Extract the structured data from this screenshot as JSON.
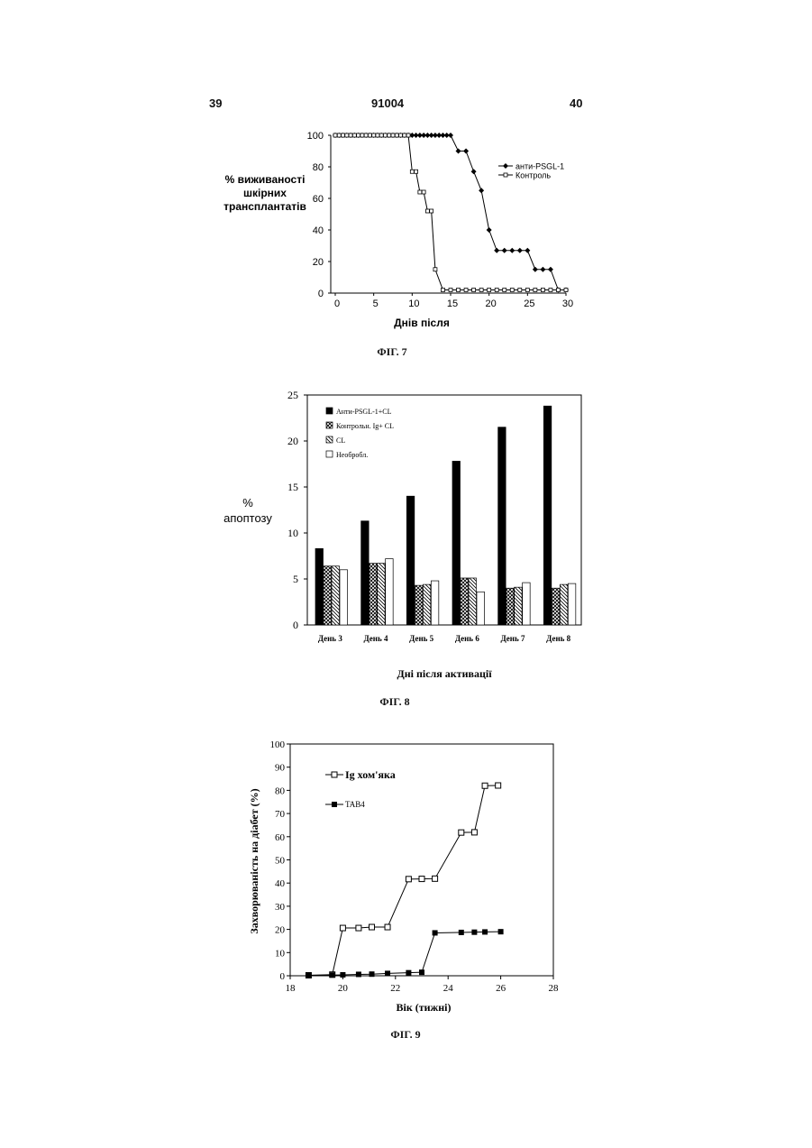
{
  "header": {
    "left_page": "39",
    "doc_number": "91004",
    "right_page": "40"
  },
  "figures": [
    {
      "caption": "ФІГ. 7"
    },
    {
      "caption": "ФІГ. 8"
    },
    {
      "caption": "ФІГ. 9"
    }
  ],
  "chart_data": [
    {
      "type": "line",
      "ylabel": [
        "% виживаності",
        "шкірних",
        "трансплантатів"
      ],
      "xlabel": "Днів після",
      "xlim": [
        0,
        30
      ],
      "ylim": [
        0,
        100
      ],
      "xticks": [
        0,
        5,
        10,
        15,
        20,
        25,
        30
      ],
      "yticks": [
        0,
        20,
        40,
        60,
        80,
        100
      ],
      "legend_position": "right",
      "series": [
        {
          "name": "анти-PSGL-1",
          "marker": "filled-diamond",
          "x": [
            0,
            0.5,
            1,
            1.5,
            2,
            2.5,
            3,
            3.5,
            4,
            4.5,
            5,
            5.5,
            6,
            6.5,
            7,
            7.5,
            8,
            8.5,
            9,
            9.5,
            10,
            10.5,
            11,
            11.5,
            12,
            12.5,
            13,
            13.5,
            14,
            14.5,
            15,
            16,
            17,
            18,
            19,
            20,
            21,
            22,
            23,
            24,
            25,
            26,
            27,
            28,
            29,
            30
          ],
          "y": [
            100,
            100,
            100,
            100,
            100,
            100,
            100,
            100,
            100,
            100,
            100,
            100,
            100,
            100,
            100,
            100,
            100,
            100,
            100,
            100,
            100,
            100,
            100,
            100,
            100,
            100,
            100,
            100,
            100,
            100,
            100,
            90,
            90,
            77,
            65,
            40,
            27,
            27,
            27,
            27,
            27,
            15,
            15,
            15,
            2,
            2
          ]
        },
        {
          "name": "Контроль",
          "marker": "open-square",
          "x": [
            0,
            0.5,
            1,
            1.5,
            2,
            2.5,
            3,
            3.5,
            4,
            4.5,
            5,
            5.5,
            6,
            6.5,
            7,
            7.5,
            8,
            8.5,
            9,
            9.5,
            10,
            10.5,
            11,
            11.5,
            12,
            12.5,
            13,
            14,
            15,
            16,
            17,
            18,
            19,
            20,
            21,
            22,
            23,
            24,
            25,
            26,
            27,
            28,
            29,
            30
          ],
          "y": [
            100,
            100,
            100,
            100,
            100,
            100,
            100,
            100,
            100,
            100,
            100,
            100,
            100,
            100,
            100,
            100,
            100,
            100,
            100,
            100,
            77,
            77,
            64,
            64,
            52,
            52,
            15,
            2,
            2,
            2,
            2,
            2,
            2,
            2,
            2,
            2,
            2,
            2,
            2,
            2,
            2,
            2,
            2,
            2
          ]
        }
      ]
    },
    {
      "type": "bar",
      "ylabel": [
        "%",
        "апоптозу"
      ],
      "xlabel": "Дні після активації",
      "ylim": [
        0,
        25
      ],
      "yticks": [
        0,
        5,
        10,
        15,
        20,
        25
      ],
      "legend_position": "top-left",
      "categories": [
        "День 3",
        "День 4",
        "День 5",
        "День 6",
        "День 7",
        "День 8"
      ],
      "series": [
        {
          "name": "Анти-PSGL-1+CL",
          "pattern": "solid-black",
          "values": [
            8.3,
            11.3,
            14.0,
            17.8,
            21.5,
            23.8
          ]
        },
        {
          "name": "Контрольн. Ig+ CL",
          "pattern": "cross-hatch",
          "values": [
            6.4,
            6.7,
            4.3,
            5.1,
            4.0,
            4.0
          ]
        },
        {
          "name": "CL",
          "pattern": "diagonal-hatch",
          "values": [
            6.4,
            6.7,
            4.4,
            5.1,
            4.1,
            4.4
          ]
        },
        {
          "name": "Необробл.",
          "pattern": "white",
          "values": [
            6.0,
            7.2,
            4.8,
            3.6,
            4.6,
            4.5
          ]
        }
      ]
    },
    {
      "type": "line",
      "ylabel": "Захворюваність на діабет (%)",
      "xlabel": "Вік (тижні)",
      "xlim": [
        18,
        28
      ],
      "ylim": [
        0,
        100
      ],
      "xticks": [
        18,
        20,
        22,
        24,
        26,
        28
      ],
      "yticks": [
        0,
        10,
        20,
        30,
        40,
        50,
        60,
        70,
        80,
        90,
        100
      ],
      "legend_position": "top-left",
      "series": [
        {
          "name": "Ig хом'яка",
          "marker": "open-square",
          "x": [
            18.7,
            19.6,
            20.0,
            20.6,
            21.1,
            21.7,
            22.5,
            23.0,
            23.5,
            24.5,
            25.0,
            25.4,
            25.9
          ],
          "y": [
            0.2,
            0.5,
            20.6,
            20.6,
            21.0,
            21.0,
            41.7,
            41.8,
            41.9,
            61.8,
            61.9,
            82.0,
            82.1
          ]
        },
        {
          "name": "TAB4",
          "marker": "filled-square",
          "x": [
            18.7,
            19.6,
            20.0,
            20.6,
            21.1,
            21.7,
            22.5,
            23.0,
            23.5,
            24.5,
            25.0,
            25.4,
            26.0
          ],
          "y": [
            0.2,
            0.3,
            0.4,
            0.6,
            0.7,
            1.0,
            1.3,
            1.5,
            18.5,
            18.7,
            18.8,
            18.9,
            19.0
          ]
        }
      ]
    }
  ]
}
